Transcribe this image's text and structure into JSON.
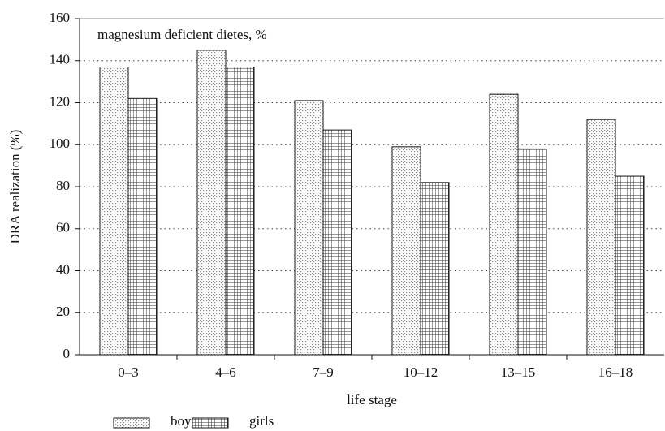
{
  "chart_data": {
    "type": "bar",
    "annotation": "magnesium deficient dietes, %",
    "x_label": "life stage",
    "y_label": "DRA realization (%)",
    "categories": [
      "0–3",
      "4–6",
      "7–9",
      "10–12",
      "13–15",
      "16–18"
    ],
    "series": [
      {
        "name": "boys",
        "color": "#bbbbbb",
        "pattern": "dots",
        "values": [
          137,
          145,
          121,
          99,
          124,
          112
        ]
      },
      {
        "name": "girls",
        "color": "#555555",
        "pattern": "grid",
        "values": [
          122,
          137,
          107,
          82,
          98,
          85
        ]
      }
    ],
    "ylim": [
      0,
      160
    ],
    "yticks": [
      0,
      20,
      40,
      60,
      80,
      100,
      120,
      140,
      160
    ],
    "grid": true
  }
}
